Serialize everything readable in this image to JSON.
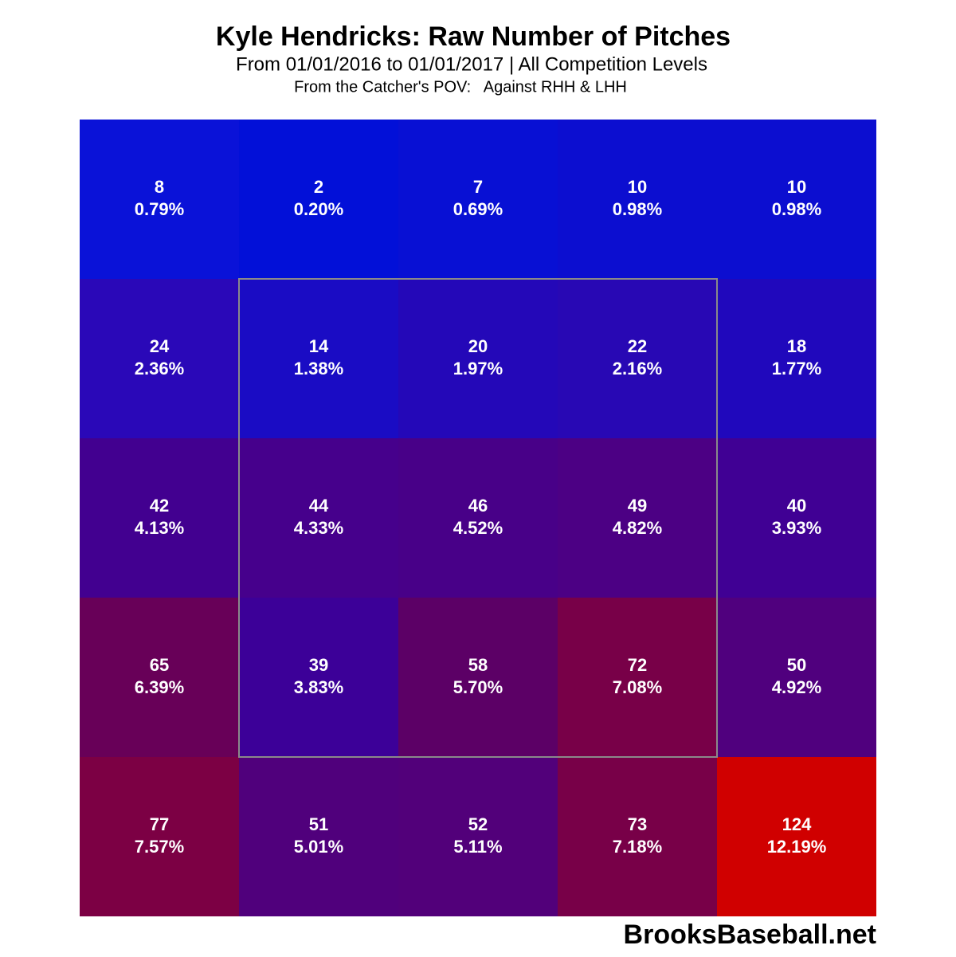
{
  "chart_data": {
    "type": "heatmap",
    "title": "Kyle Hendricks: Raw Number of Pitches",
    "subtitle": "From 01/01/2016 to 01/01/2017 | All Competition Levels",
    "note": "From the Catcher's POV:   Against RHH & LHH",
    "source": "BrooksBaseball.net",
    "values": [
      [
        8,
        2,
        7,
        10,
        10
      ],
      [
        24,
        14,
        20,
        22,
        18
      ],
      [
        42,
        44,
        46,
        49,
        40
      ],
      [
        65,
        39,
        58,
        72,
        50
      ],
      [
        77,
        51,
        52,
        73,
        124
      ]
    ],
    "percent_labels": [
      [
        "0.79%",
        "0.20%",
        "0.69%",
        "0.98%",
        "0.98%"
      ],
      [
        "2.36%",
        "1.38%",
        "1.97%",
        "2.16%",
        "1.77%"
      ],
      [
        "4.13%",
        "4.33%",
        "4.52%",
        "4.82%",
        "3.93%"
      ],
      [
        "6.39%",
        "3.83%",
        "5.70%",
        "7.08%",
        "4.92%"
      ],
      [
        "7.57%",
        "5.01%",
        "5.11%",
        "7.18%",
        "12.19%"
      ]
    ],
    "colors": [
      [
        "#0a12d8",
        "#0210d8",
        "#0810d4",
        "#0c0ed0",
        "#0c0ed0"
      ],
      [
        "#2a08b8",
        "#1a0cc4",
        "#2408b8",
        "#2808b4",
        "#2008bc"
      ],
      [
        "#420090",
        "#46008c",
        "#480088",
        "#4c0084",
        "#400094"
      ],
      [
        "#680058",
        "#3c0098",
        "#5c0066",
        "#780048",
        "#50007e"
      ],
      [
        "#7c0044",
        "#50007c",
        "#52007a",
        "#780048",
        "#d00000"
      ]
    ]
  }
}
